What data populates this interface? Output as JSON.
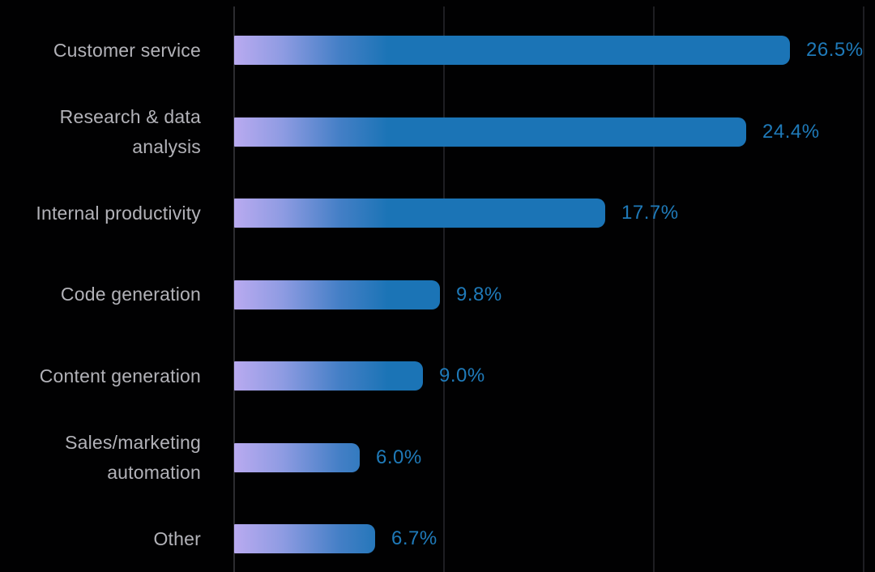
{
  "chart_data": {
    "type": "bar",
    "orientation": "horizontal",
    "title": "",
    "xlabel": "",
    "ylabel": "",
    "categories": [
      "Customer service",
      "Research & data analysis",
      "Internal productivity",
      "Code generation",
      "Content generation",
      "Sales/marketing automation",
      "Other"
    ],
    "values": [
      26.5,
      24.4,
      17.7,
      9.8,
      9.0,
      6.0,
      6.7
    ],
    "value_labels": [
      "26.5%",
      "24.4%",
      "17.7%",
      "9.8%",
      "9.0%",
      "6.0%",
      "6.7%"
    ],
    "xlim": [
      0,
      30
    ],
    "grid_ticks_percent": [
      0,
      10,
      20,
      30
    ],
    "grid": true,
    "legend": "none",
    "colors": {
      "background": "#010102",
      "bar_gradient_start": "#b9aaf0",
      "bar_gradient_mid": "#447fc6",
      "bar_gradient_end": "#1b74b6",
      "category_label": "#b2b2b8",
      "value_label": "#1f7ab9",
      "axis_line": "#2c2c30",
      "gridline": "#1e1e22"
    }
  }
}
